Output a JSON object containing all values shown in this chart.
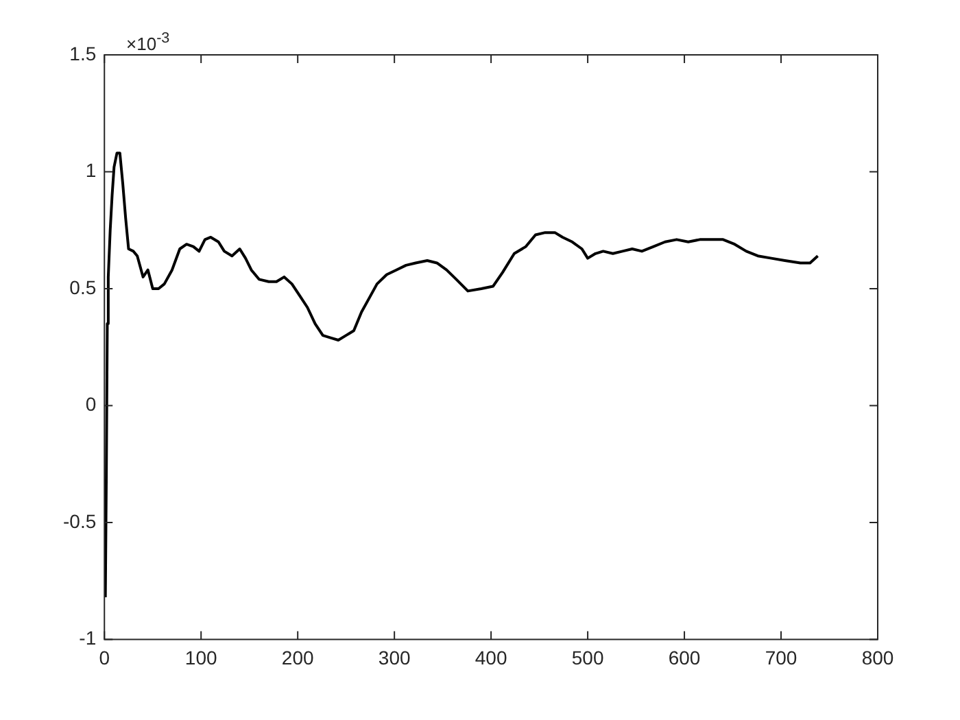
{
  "chart_data": {
    "type": "line",
    "x": [
      1,
      2,
      3,
      4,
      6,
      8,
      10,
      13,
      16,
      19,
      22,
      25,
      30,
      34,
      40,
      45,
      50,
      56,
      62,
      70,
      78,
      85,
      92,
      98,
      104,
      110,
      118,
      124,
      132,
      140,
      146,
      152,
      160,
      170,
      178,
      186,
      194,
      202,
      210,
      218,
      226,
      234,
      242,
      250,
      258,
      266,
      274,
      282,
      292,
      302,
      312,
      322,
      334,
      344,
      354,
      364,
      376,
      390,
      402,
      412,
      424,
      436,
      446,
      456,
      466,
      474,
      484,
      494,
      500,
      508,
      516,
      526,
      536,
      546,
      556,
      568,
      580,
      592,
      604,
      616,
      628,
      640,
      652,
      664,
      676,
      690,
      704,
      720,
      730,
      738
    ],
    "series": [
      {
        "color": "#000000",
        "values": [
          -0.82,
          -0.3,
          0.35,
          0.55,
          0.75,
          0.9,
          1.02,
          1.08,
          1.08,
          0.95,
          0.8,
          0.67,
          0.66,
          0.64,
          0.55,
          0.58,
          0.5,
          0.5,
          0.52,
          0.58,
          0.67,
          0.69,
          0.68,
          0.66,
          0.71,
          0.72,
          0.7,
          0.66,
          0.64,
          0.67,
          0.63,
          0.58,
          0.54,
          0.53,
          0.53,
          0.55,
          0.52,
          0.47,
          0.42,
          0.35,
          0.3,
          0.29,
          0.28,
          0.3,
          0.32,
          0.4,
          0.46,
          0.52,
          0.56,
          0.58,
          0.6,
          0.61,
          0.62,
          0.61,
          0.58,
          0.54,
          0.49,
          0.5,
          0.51,
          0.57,
          0.65,
          0.68,
          0.73,
          0.74,
          0.74,
          0.72,
          0.7,
          0.67,
          0.63,
          0.65,
          0.66,
          0.65,
          0.66,
          0.67,
          0.66,
          0.68,
          0.7,
          0.71,
          0.7,
          0.71,
          0.71,
          0.71,
          0.69,
          0.66,
          0.64,
          0.63,
          0.62,
          0.61,
          0.61,
          0.64
        ]
      }
    ],
    "xlim": [
      0,
      800
    ],
    "xticks": [
      0,
      100,
      200,
      300,
      400,
      500,
      600,
      700,
      800
    ],
    "ylim": [
      -1,
      1.5
    ],
    "yticks": [
      -1,
      -0.5,
      0,
      0.5,
      1,
      1.5
    ],
    "annotations": [
      "×10$^{-3}$"
    ],
    "grid": false,
    "legend": false,
    "marker": "none",
    "line_style": "solid"
  }
}
